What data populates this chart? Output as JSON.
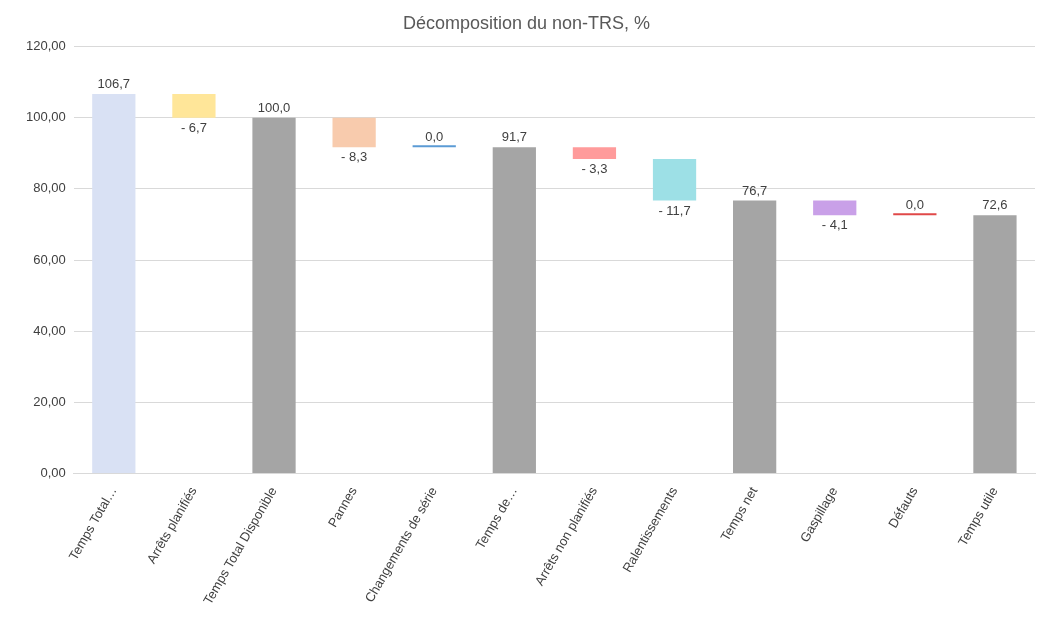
{
  "chart_data": {
    "type": "bar",
    "title": "Décomposition du non-TRS, %",
    "categories": [
      "Temps Total…",
      "Arrêts planifiés",
      "Temps Total Disponible",
      "Pannes",
      "Changements de série",
      "Temps de…",
      "Arrêts non planifiés",
      "Ralentissements",
      "Temps net",
      "Gaspillage",
      "Défauts",
      "Temps utile"
    ],
    "values": [
      106.7,
      -6.7,
      100.0,
      -8.3,
      0.0,
      91.7,
      -3.3,
      -11.7,
      76.7,
      -4.1,
      0.0,
      72.6
    ],
    "base": [
      0,
      106.7,
      0,
      100.0,
      91.7,
      0,
      91.7,
      88.4,
      0,
      76.7,
      72.6,
      0
    ],
    "value_labels": [
      "106,7",
      "- 6,7",
      "100,0",
      "- 8,3",
      "0,0",
      "91,7",
      "- 3,3",
      "- 11,7",
      "76,7",
      "- 4,1",
      "0,0",
      "72,6"
    ],
    "colors": [
      "#d9e1f4",
      "#ffe699",
      "#a5a5a5",
      "#f8cbad",
      "#5b9bd5",
      "#a5a5a5",
      "#ff9b9b",
      "#9de0e6",
      "#a5a5a5",
      "#c9a0e8",
      "#e04848",
      "#a5a5a5"
    ],
    "ylim": [
      0,
      120
    ],
    "yticks": [
      {
        "value": 0,
        "label": "0,00"
      },
      {
        "value": 20,
        "label": "20,00"
      },
      {
        "value": 40,
        "label": "40,00"
      },
      {
        "value": 60,
        "label": "60,00"
      },
      {
        "value": 80,
        "label": "80,00"
      },
      {
        "value": 100,
        "label": "100,00"
      },
      {
        "value": 120,
        "label": "120,00"
      }
    ],
    "grid": "y",
    "legend": false
  }
}
